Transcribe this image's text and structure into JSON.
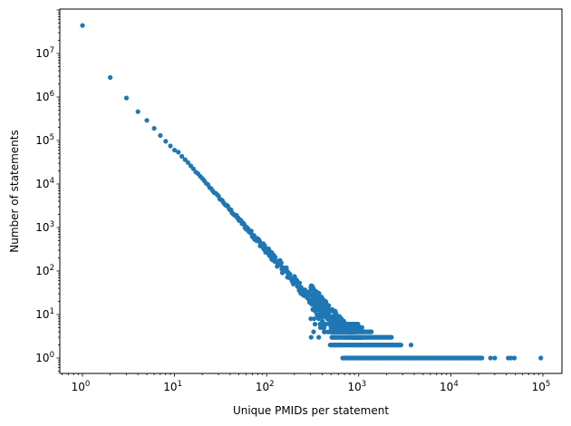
{
  "chart_data": {
    "type": "scatter",
    "title": "",
    "xlabel": "Unique PMIDs per statement",
    "ylabel": "Number of statements",
    "xscale": "log",
    "yscale": "log",
    "xlim": [
      0.56,
      160000
    ],
    "ylim": [
      0.45,
      93000000
    ],
    "grid": false,
    "legend": null,
    "marker_color": "#1f77b4",
    "x_ticks": [
      {
        "exp": "0",
        "value": 1
      },
      {
        "exp": "1",
        "value": 10
      },
      {
        "exp": "2",
        "value": 100
      },
      {
        "exp": "3",
        "value": 1000
      },
      {
        "exp": "4",
        "value": 10000
      },
      {
        "exp": "5",
        "value": 100000
      }
    ],
    "y_ticks": [
      {
        "exp": "0",
        "value": 1
      },
      {
        "exp": "1",
        "value": 10
      },
      {
        "exp": "2",
        "value": 100
      },
      {
        "exp": "3",
        "value": 1000
      },
      {
        "exp": "4",
        "value": 10000
      },
      {
        "exp": "5",
        "value": 100000
      },
      {
        "exp": "6",
        "value": 1000000
      },
      {
        "exp": "7",
        "value": 10000000
      }
    ],
    "points_head": [
      [
        1,
        44000000
      ],
      [
        2,
        2800000
      ],
      [
        3,
        950000
      ],
      [
        4,
        460000
      ],
      [
        5,
        290000
      ],
      [
        6,
        190000
      ],
      [
        7,
        130000
      ],
      [
        8,
        96000
      ],
      [
        9,
        75000
      ],
      [
        10,
        60000
      ]
    ],
    "power_law_body": {
      "x_start": 11,
      "x_end": 700,
      "a": 15000000,
      "exponent": -2.35,
      "scatter_log10": 0.12
    },
    "noisy_tail": {
      "x_start": 300,
      "x_end": 1100,
      "y_min": 3,
      "y_max": 60
    },
    "bands": [
      {
        "y": 1,
        "x_start": 670,
        "x_end": 22000,
        "extra_x": [
          27000,
          30000,
          42000,
          45000,
          49000,
          95000
        ]
      },
      {
        "y": 2,
        "x_start": 490,
        "x_end": 2900,
        "extra_x": [
          3700
        ]
      },
      {
        "y": 3,
        "x_start": 510,
        "x_end": 2300,
        "extra_x": []
      },
      {
        "y": 4,
        "x_start": 480,
        "x_end": 1400,
        "extra_x": []
      },
      {
        "y": 5,
        "x_start": 500,
        "x_end": 1100,
        "extra_x": []
      },
      {
        "y": 6,
        "x_start": 550,
        "x_end": 1000,
        "extra_x": []
      }
    ]
  }
}
